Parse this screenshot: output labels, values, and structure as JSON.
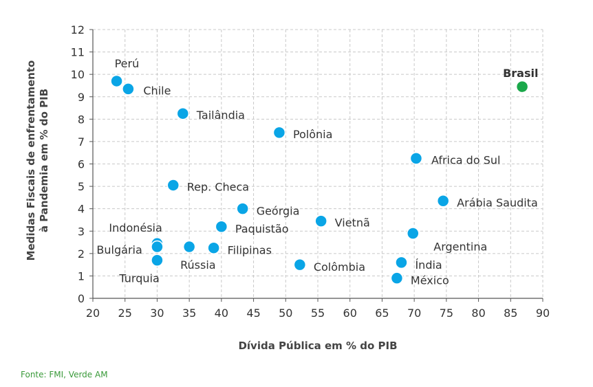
{
  "chart_data": {
    "type": "scatter",
    "xlabel": "Dívida Pública em % do PIB",
    "ylabel_line1": "Medidas Fiscais de enfrentamento",
    "ylabel_line2": "à Pandemia em % do PIB",
    "xlim": [
      20,
      90
    ],
    "ylim": [
      0,
      12
    ],
    "xticks": [
      20,
      25,
      30,
      35,
      40,
      45,
      50,
      55,
      60,
      65,
      70,
      75,
      80,
      85,
      90
    ],
    "yticks": [
      0,
      1,
      2,
      3,
      4,
      5,
      6,
      7,
      8,
      9,
      10,
      11,
      12
    ],
    "grid": "dashed",
    "colors": {
      "default": "#0aa5e6",
      "highlight": "#1aa84a",
      "grid": "#c8c8c8"
    },
    "points": [
      {
        "name": "Perú",
        "x": 23.7,
        "y": 9.7
      },
      {
        "name": "Chile",
        "x": 25.5,
        "y": 9.35
      },
      {
        "name": "Tailândia",
        "x": 34.0,
        "y": 8.25
      },
      {
        "name": "Polônia",
        "x": 49.0,
        "y": 7.4
      },
      {
        "name": "Africa do Sul",
        "x": 70.3,
        "y": 6.25
      },
      {
        "name": "Rep. Checa",
        "x": 32.5,
        "y": 5.05
      },
      {
        "name": "Arábia Saudita",
        "x": 74.5,
        "y": 4.35
      },
      {
        "name": "Geórgia",
        "x": 43.3,
        "y": 4.0
      },
      {
        "name": "Vietnã",
        "x": 55.5,
        "y": 3.45
      },
      {
        "name": "Paquistão",
        "x": 40.0,
        "y": 3.2
      },
      {
        "name": "Argentina",
        "x": 69.8,
        "y": 2.9
      },
      {
        "name": "Indonésia",
        "x": 30.0,
        "y": 2.45
      },
      {
        "name": "Bulgária",
        "x": 30.0,
        "y": 2.3
      },
      {
        "name": "Rússia",
        "x": 35.0,
        "y": 2.3
      },
      {
        "name": "Filipinas",
        "x": 38.8,
        "y": 2.25
      },
      {
        "name": "Turquia",
        "x": 30.0,
        "y": 1.7
      },
      {
        "name": "Colômbia",
        "x": 52.2,
        "y": 1.5
      },
      {
        "name": "Índia",
        "x": 68.0,
        "y": 1.6
      },
      {
        "name": "México",
        "x": 67.3,
        "y": 0.9
      },
      {
        "name": "Brasil",
        "x": 86.8,
        "y": 9.45,
        "highlight": true
      }
    ]
  },
  "source_text": "Fonte: FMI, Verde AM"
}
